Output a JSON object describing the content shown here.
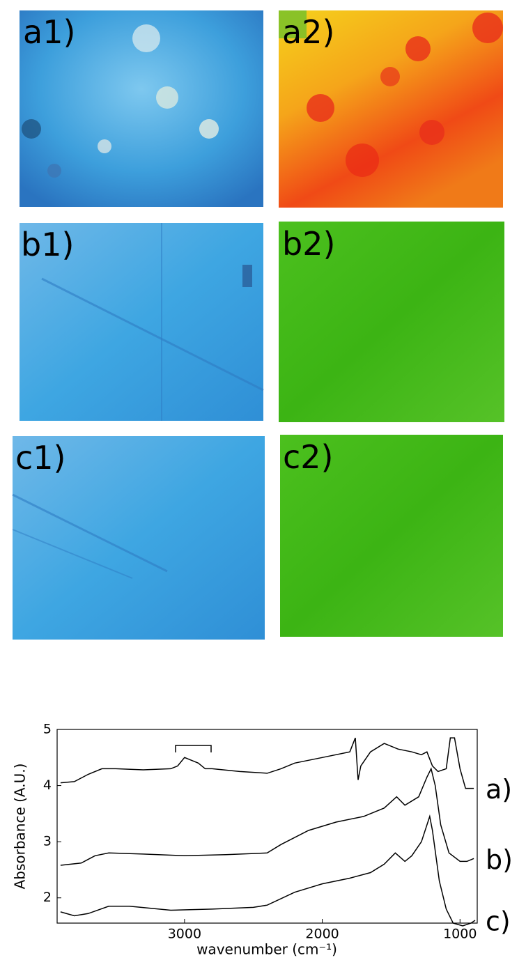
{
  "panels": [
    {
      "label": "a1)"
    },
    {
      "label": "a2)"
    },
    {
      "label": "b1)"
    },
    {
      "label": "b2)"
    },
    {
      "label": "c1)"
    },
    {
      "label": "c2)"
    }
  ],
  "chart_data": {
    "type": "line",
    "x_label": "wavenumber (cm⁻¹)",
    "y_label": "Absorbance (A.U.)",
    "xlim": [
      3925,
      875
    ],
    "ylim": [
      1.55,
      5
    ],
    "xticks": [
      3000,
      2000,
      1000
    ],
    "yticks": [
      5,
      4,
      3,
      2
    ],
    "series": [
      {
        "name": "a)",
        "color": "#000000",
        "x": [
          3900,
          3800,
          3700,
          3600,
          3500,
          3300,
          3100,
          3050,
          3000,
          2950,
          2900,
          2850,
          2800,
          2600,
          2400,
          2300,
          2200,
          2000,
          1800,
          1760,
          1740,
          1720,
          1650,
          1550,
          1450,
          1350,
          1280,
          1240,
          1200,
          1160,
          1100,
          1070,
          1040,
          1000,
          960,
          900
        ],
        "values": [
          4.05,
          4.07,
          4.2,
          4.3,
          4.3,
          4.28,
          4.3,
          4.35,
          4.5,
          4.45,
          4.4,
          4.3,
          4.3,
          4.25,
          4.22,
          4.3,
          4.4,
          4.5,
          4.6,
          4.85,
          4.1,
          4.35,
          4.6,
          4.75,
          4.65,
          4.6,
          4.55,
          4.6,
          4.35,
          4.25,
          4.3,
          4.85,
          4.85,
          4.3,
          3.95,
          3.95
        ]
      },
      {
        "name": "b)",
        "color": "#000000",
        "x": [
          3900,
          3750,
          3650,
          3550,
          3300,
          3000,
          2700,
          2400,
          2300,
          2100,
          1900,
          1700,
          1550,
          1460,
          1400,
          1300,
          1240,
          1210,
          1180,
          1140,
          1080,
          1000,
          950,
          900
        ],
        "values": [
          2.58,
          2.62,
          2.75,
          2.8,
          2.78,
          2.75,
          2.77,
          2.8,
          2.95,
          3.2,
          3.35,
          3.45,
          3.6,
          3.8,
          3.65,
          3.8,
          4.15,
          4.3,
          4.0,
          3.3,
          2.8,
          2.65,
          2.65,
          2.7
        ]
      },
      {
        "name": "c)",
        "color": "#000000",
        "x": [
          3900,
          3800,
          3700,
          3550,
          3400,
          3100,
          2800,
          2500,
          2400,
          2200,
          2000,
          1800,
          1650,
          1550,
          1470,
          1400,
          1350,
          1280,
          1220,
          1200,
          1150,
          1100,
          1050,
          980,
          920,
          890
        ],
        "values": [
          1.75,
          1.68,
          1.72,
          1.85,
          1.85,
          1.78,
          1.8,
          1.83,
          1.87,
          2.1,
          2.25,
          2.35,
          2.45,
          2.6,
          2.8,
          2.65,
          2.75,
          3.0,
          3.45,
          3.2,
          2.3,
          1.8,
          1.55,
          1.5,
          1.55,
          1.6
        ]
      }
    ]
  }
}
